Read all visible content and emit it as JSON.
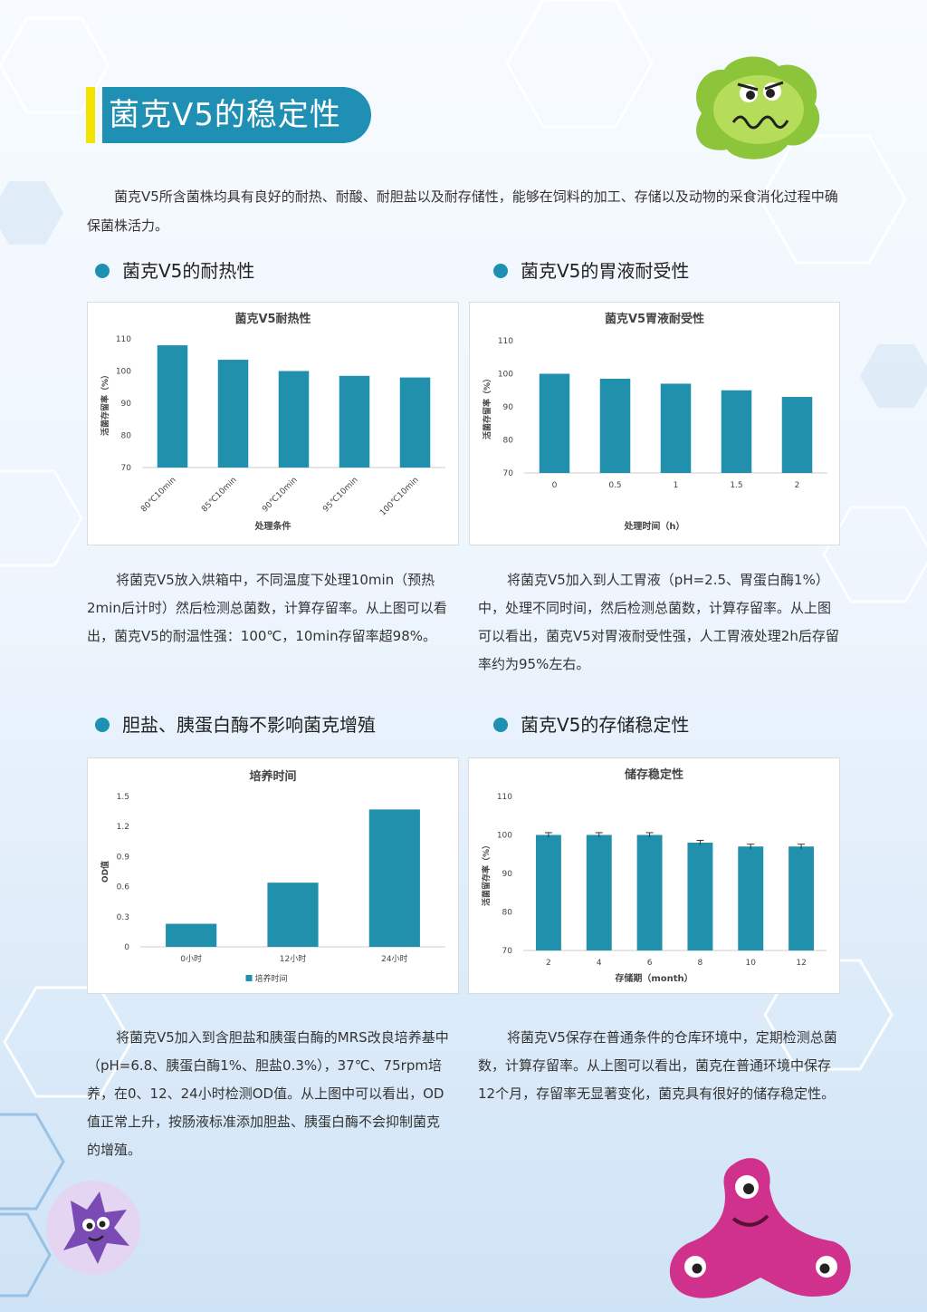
{
  "title": "菌克V5的稳定性",
  "intro": "菌克V5所含菌株均具有良好的耐热、耐酸、耐胆盐以及耐存储性，能够在饲料的加工、存储以及动物的采食消化过程中确保菌株活力。",
  "colors": {
    "accent": "#1f8fb3",
    "bar": "#2090ad",
    "yellow": "#f2e400"
  },
  "sections": {
    "heat": {
      "heading": "菌克V5的耐热性",
      "paragraph": "将菌克V5放入烘箱中，不同温度下处理10min（预热2min后计时）然后检测总菌数，计算存留率。从上图可以看出，菌克V5的耐温性强：100℃，10min存留率超98%。"
    },
    "gastric": {
      "heading": "菌克V5的胃液耐受性",
      "paragraph": "将菌克V5加入到人工胃液（pH=2.5、胃蛋白酶1%）中，处理不同时间，然后检测总菌数，计算存留率。从上图可以看出，菌克V5对胃液耐受性强，人工胃液处理2h后存留率约为95%左右。"
    },
    "bile": {
      "heading": "胆盐、胰蛋白酶不影响菌克增殖",
      "paragraph": "将菌克V5加入到含胆盐和胰蛋白酶的MRS改良培养基中（pH=6.8、胰蛋白酶1%、胆盐0.3%），37℃、75rpm培养，在0、12、24小时检测OD值。从上图中可以看出，OD值正常上升，按肠液标准添加胆盐、胰蛋白酶不会抑制菌克的增殖。"
    },
    "storage": {
      "heading": "菌克V5的存储稳定性",
      "paragraph": "将菌克V5保存在普通条件的仓库环境中，定期检测总菌数，计算存留率。从上图可以看出，菌克在普通环境中保存12个月，存留率无显著变化，菌克具有很好的储存稳定性。"
    }
  },
  "chart_data": [
    {
      "type": "bar",
      "title": "菌克V5耐热性",
      "xlabel": "处理条件",
      "ylabel": "活菌存留率（%）",
      "categories": [
        "80℃10min",
        "85℃10min",
        "90℃10min",
        "95℃10min",
        "100℃10min"
      ],
      "values": [
        108,
        103.5,
        100,
        98.5,
        98
      ],
      "ylim": [
        70,
        110
      ],
      "yticks": [
        70,
        80,
        90,
        100,
        110
      ],
      "grid": false
    },
    {
      "type": "bar",
      "title": "菌克V5胃液耐受性",
      "xlabel": "处理时间（h）",
      "ylabel": "活菌存留率（%）",
      "categories": [
        "0",
        "0.5",
        "1",
        "1.5",
        "2"
      ],
      "values": [
        100,
        98.5,
        97,
        95,
        93
      ],
      "ylim": [
        70,
        110
      ],
      "yticks": [
        70,
        80,
        90,
        100,
        110
      ],
      "grid": false
    },
    {
      "type": "bar",
      "title": "培养时间",
      "xlabel": "",
      "ylabel": "OD值",
      "categories": [
        "0小时",
        "12小时",
        "24小时"
      ],
      "series": [
        {
          "name": "培养时间",
          "values": [
            0.23,
            0.64,
            1.37
          ]
        }
      ],
      "ylim": [
        0,
        1.5
      ],
      "yticks": [
        "0",
        "0.3",
        "0.6",
        "0.9",
        "1.2",
        "1.5"
      ],
      "legend": "bottom",
      "grid": false
    },
    {
      "type": "bar",
      "title": "储存稳定性",
      "xlabel": "存储期（month）",
      "ylabel": "活菌留存率（%）",
      "categories": [
        "2",
        "4",
        "6",
        "8",
        "10",
        "12"
      ],
      "values": [
        100,
        100,
        100,
        98,
        97,
        97
      ],
      "errors": [
        0.6,
        0.6,
        0.6,
        0.6,
        0.6,
        0.6
      ],
      "ylim": [
        70,
        110
      ],
      "yticks": [
        70,
        80,
        90,
        100,
        110
      ],
      "grid": false
    }
  ]
}
